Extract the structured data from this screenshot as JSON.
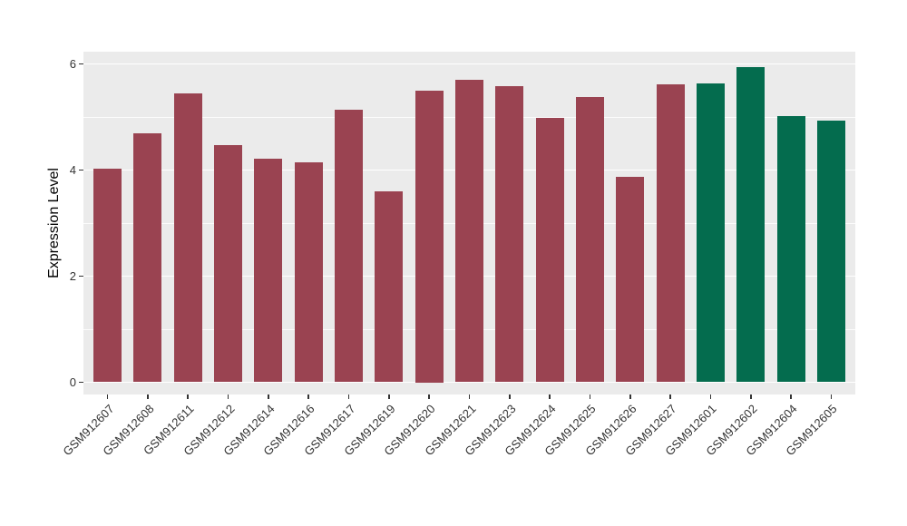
{
  "chart_data": {
    "type": "bar",
    "title": "",
    "xlabel": "",
    "ylabel": "Expression Level",
    "categories": [
      "GSM912607",
      "GSM912608",
      "GSM912611",
      "GSM912612",
      "GSM912614",
      "GSM912616",
      "GSM912617",
      "GSM912619",
      "GSM912620",
      "GSM912621",
      "GSM912623",
      "GSM912624",
      "GSM912625",
      "GSM912626",
      "GSM912627",
      "GSM912601",
      "GSM912602",
      "GSM912604",
      "GSM912605"
    ],
    "values": [
      4.03,
      4.7,
      5.44,
      4.47,
      4.21,
      4.15,
      5.14,
      3.59,
      5.5,
      5.7,
      5.58,
      4.99,
      5.38,
      3.87,
      5.61,
      5.63,
      5.94,
      5.02,
      4.94
    ],
    "bar_colors": [
      "#9A4351",
      "#9A4351",
      "#9A4351",
      "#9A4351",
      "#9A4351",
      "#9A4351",
      "#9A4351",
      "#9A4351",
      "#9A4351",
      "#9A4351",
      "#9A4351",
      "#9A4351",
      "#9A4351",
      "#9A4351",
      "#9A4351",
      "#046C4E",
      "#046C4E",
      "#046C4E",
      "#046C4E"
    ],
    "ylim": [
      0,
      6.23
    ],
    "yticks": [
      0,
      2,
      4,
      6
    ],
    "ytick_labels": [
      "0",
      "2",
      "4",
      "6"
    ],
    "yminor": [
      1,
      3,
      5
    ],
    "grid": true,
    "legend": "none",
    "panel_bg": "#EBEBEB",
    "grid_color": "#FFFFFF",
    "tick_color": "#333333"
  }
}
